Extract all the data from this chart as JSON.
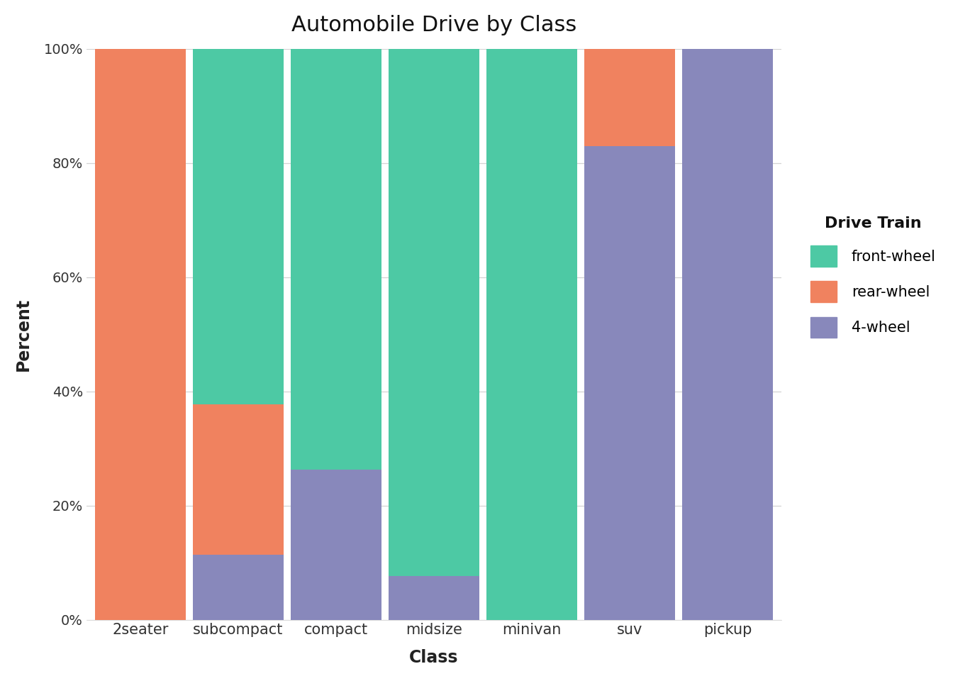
{
  "categories": [
    "2seater",
    "subcompact",
    "compact",
    "midsize",
    "minivan",
    "suv",
    "pickup"
  ],
  "front_wheel": [
    0.0,
    0.623,
    0.737,
    0.923,
    1.0,
    0.0,
    0.0
  ],
  "rear_wheel": [
    1.0,
    0.263,
    0.0,
    0.0,
    0.0,
    0.171,
    0.0
  ],
  "four_wheel": [
    0.0,
    0.114,
    0.263,
    0.077,
    0.0,
    0.829,
    1.0
  ],
  "colors": {
    "front_wheel": "#4DC9A4",
    "rear_wheel": "#F0825F",
    "four_wheel": "#8888BB"
  },
  "title": "Automobile Drive by Class",
  "xlabel": "Class",
  "ylabel": "Percent",
  "legend_title": "Drive Train",
  "legend_labels": [
    "front-wheel",
    "rear-wheel",
    "4-wheel"
  ],
  "background_color": "#FFFFFF",
  "plot_background_color": "#FFFFFF",
  "yticks": [
    0,
    0.2,
    0.4,
    0.6,
    0.8,
    1.0
  ],
  "ytick_labels": [
    "0%",
    "20%",
    "40%",
    "60%",
    "80%",
    "100%"
  ],
  "bar_width": 0.93,
  "grid_color": "#D3D3D3"
}
